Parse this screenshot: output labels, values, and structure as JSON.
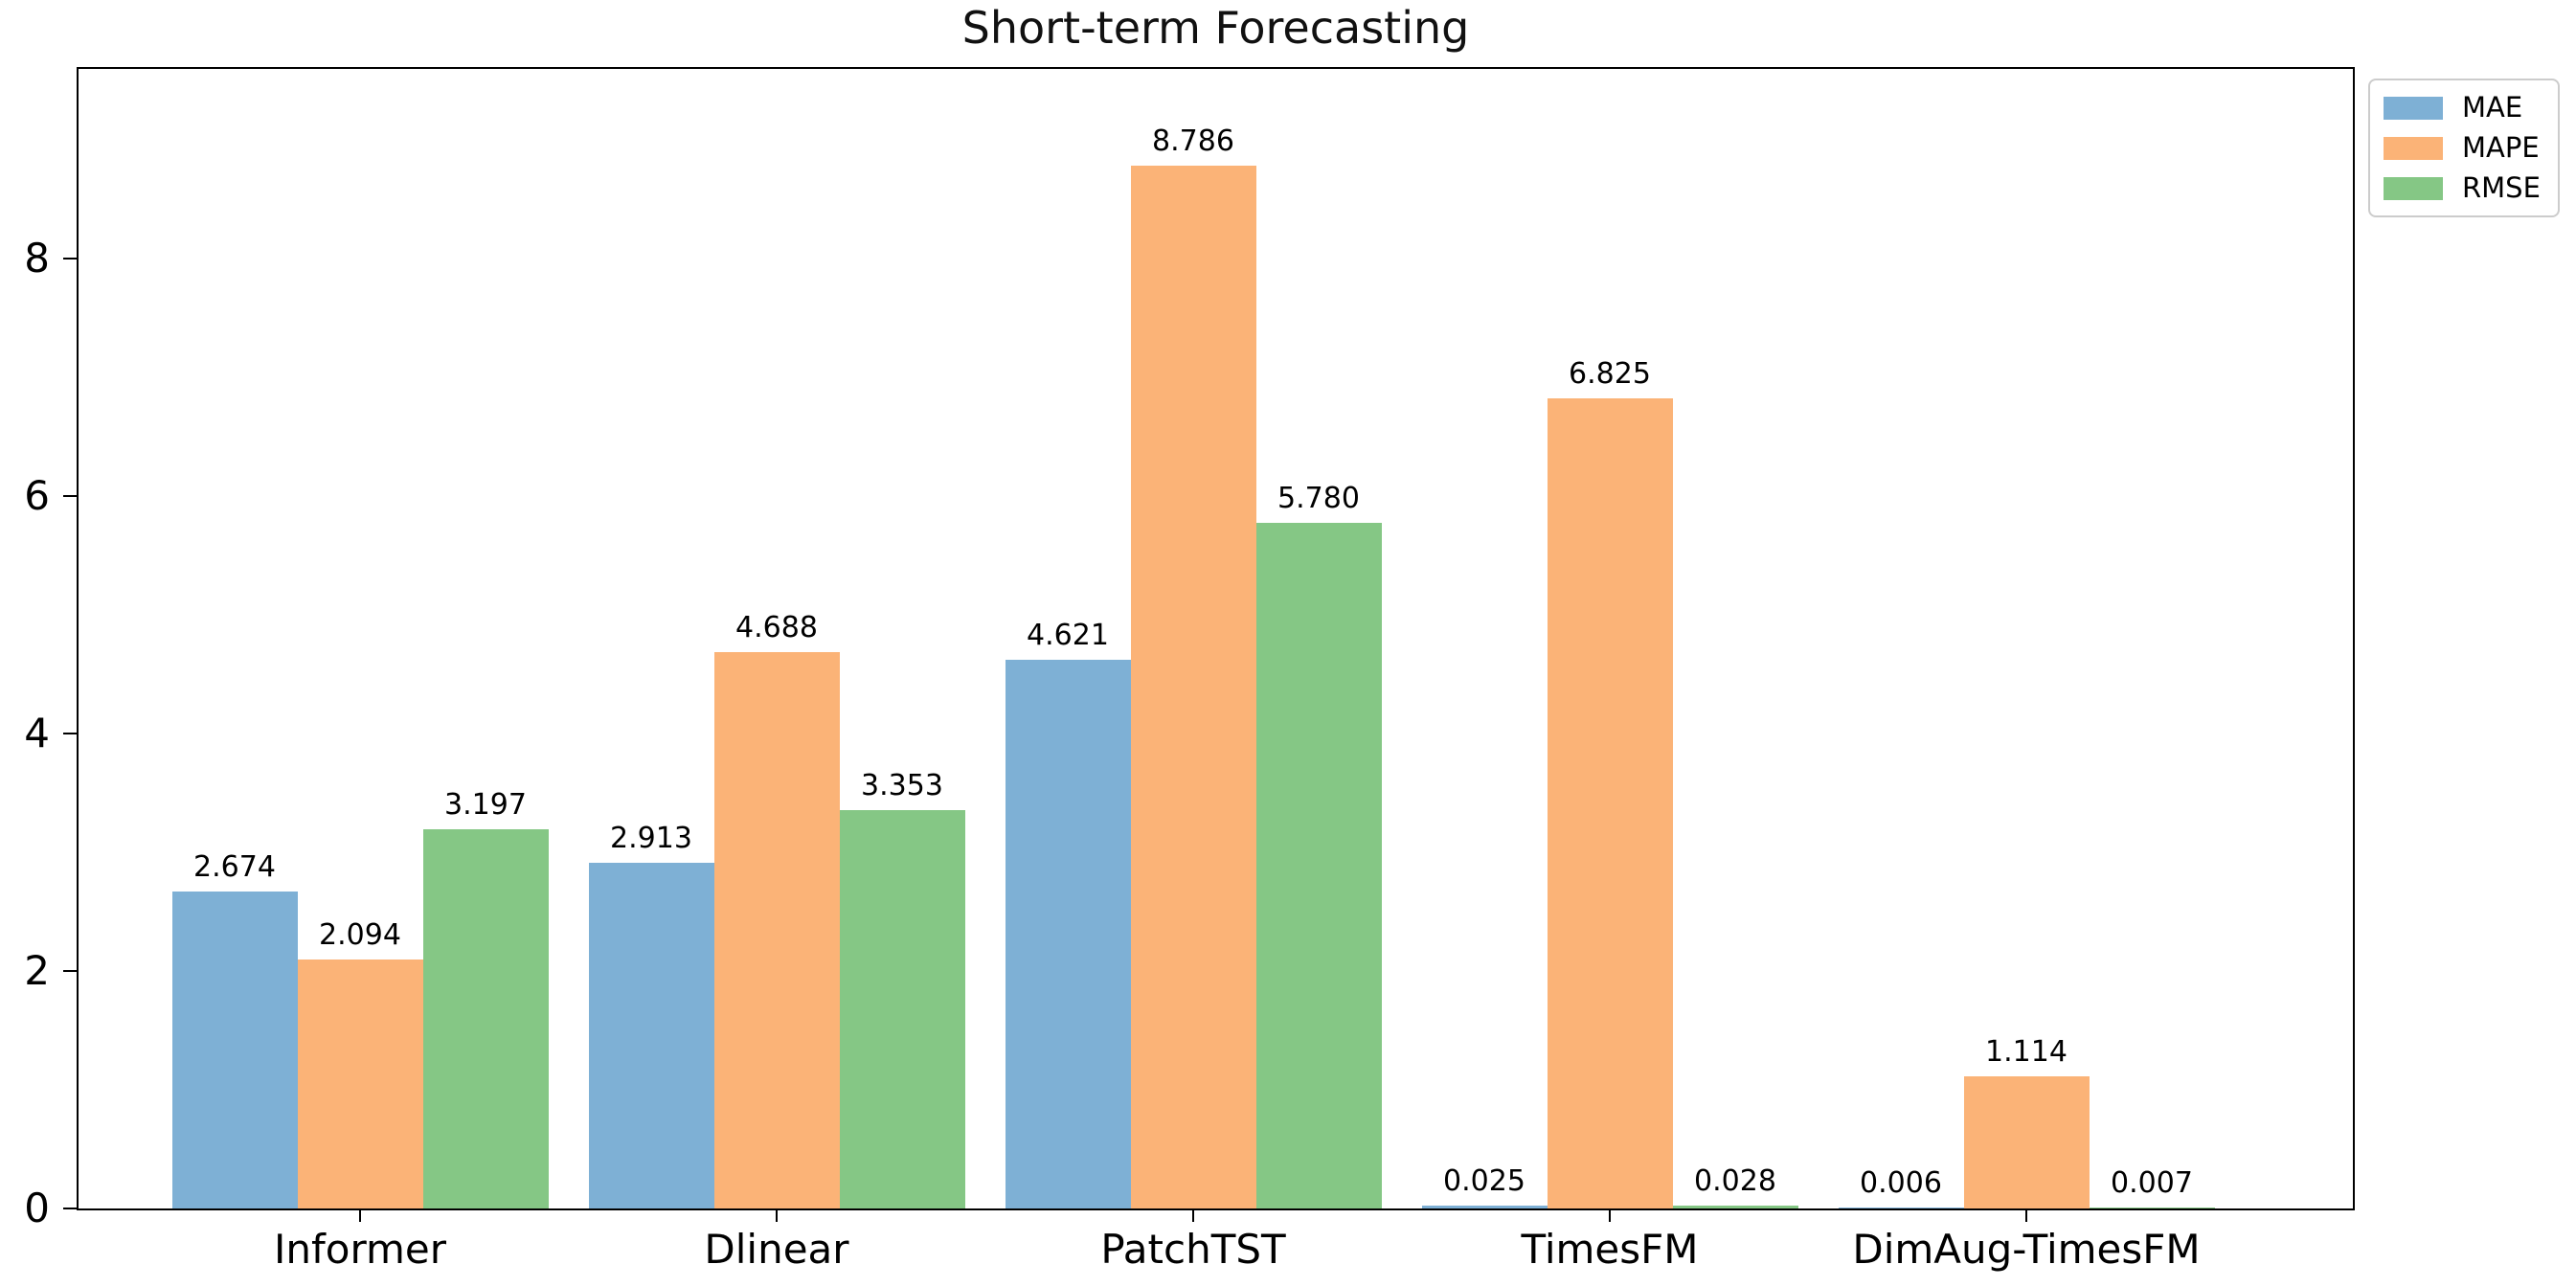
{
  "figure": {
    "title": "Short-term Forecasting"
  },
  "chart_data": {
    "type": "bar",
    "title": "Short-term Forecasting",
    "categories": [
      "Informer",
      "Dlinear",
      "PatchTST",
      "TimesFM",
      "DimAug-TimesFM"
    ],
    "series": [
      {
        "name": "MAE",
        "color": "#7EB0D5",
        "values": [
          2.674,
          2.913,
          4.621,
          0.025,
          0.006
        ]
      },
      {
        "name": "MAPE",
        "color": "#FBB377",
        "values": [
          2.094,
          4.688,
          8.786,
          6.825,
          1.114
        ]
      },
      {
        "name": "RMSE",
        "color": "#85C785",
        "values": [
          3.197,
          3.353,
          5.78,
          0.028,
          0.007
        ]
      }
    ],
    "bar_value_labels": [
      [
        "2.674",
        "2.913",
        "4.621",
        "0.025",
        "0.006"
      ],
      [
        "2.094",
        "4.688",
        "8.786",
        "6.825",
        "1.114"
      ],
      [
        "3.197",
        "3.353",
        "5.780",
        "0.028",
        "0.007"
      ]
    ],
    "yticks": [
      "0",
      "2",
      "4",
      "6",
      "8"
    ],
    "ytick_values": [
      0,
      2,
      4,
      6,
      8
    ],
    "ylim": [
      0,
      9.6
    ],
    "xlabel": "",
    "ylabel": "",
    "grid": false,
    "legend_position": "outside-upper-right",
    "axis_color": "#000000",
    "background_color": "#ffffff"
  }
}
